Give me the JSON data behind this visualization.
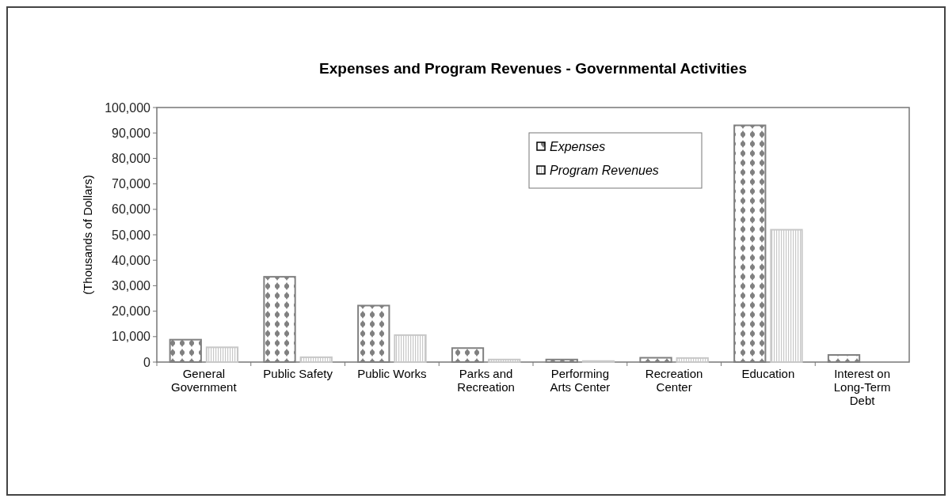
{
  "chart_data": {
    "type": "bar",
    "title": "Expenses and Program Revenues - Governmental Activities",
    "ylabel": "(Thousands  of Dollars)",
    "categories": [
      "General Government",
      "Public Safety",
      "Public Works",
      "Parks and Recreation",
      "Performing Arts Center",
      "Recreation Center",
      "Education",
      "Interest on Long-Term Debt"
    ],
    "series": [
      {
        "name": "Expenses",
        "color": "#808080",
        "values": [
          8800,
          33500,
          22200,
          5500,
          1000,
          1700,
          93000,
          2800
        ]
      },
      {
        "name": "Program Revenues",
        "color": "#c8c8c8",
        "values": [
          5800,
          1900,
          10600,
          1000,
          400,
          1600,
          52000,
          0
        ]
      }
    ],
    "ylim": [
      0,
      100000
    ],
    "yticks": [
      {
        "value": 0,
        "label": "0"
      },
      {
        "value": 10000,
        "label": "10,000"
      },
      {
        "value": 20000,
        "label": "20,000"
      },
      {
        "value": 30000,
        "label": "30,000"
      },
      {
        "value": 40000,
        "label": "40,000"
      },
      {
        "value": 50000,
        "label": "50,000"
      },
      {
        "value": 60000,
        "label": "60,000"
      },
      {
        "value": 70000,
        "label": "70,000"
      },
      {
        "value": 80000,
        "label": "80,000"
      },
      {
        "value": 90000,
        "label": "90,000"
      },
      {
        "value": 100000,
        "label": "100,000"
      }
    ],
    "grid": false,
    "legend": "top right"
  }
}
